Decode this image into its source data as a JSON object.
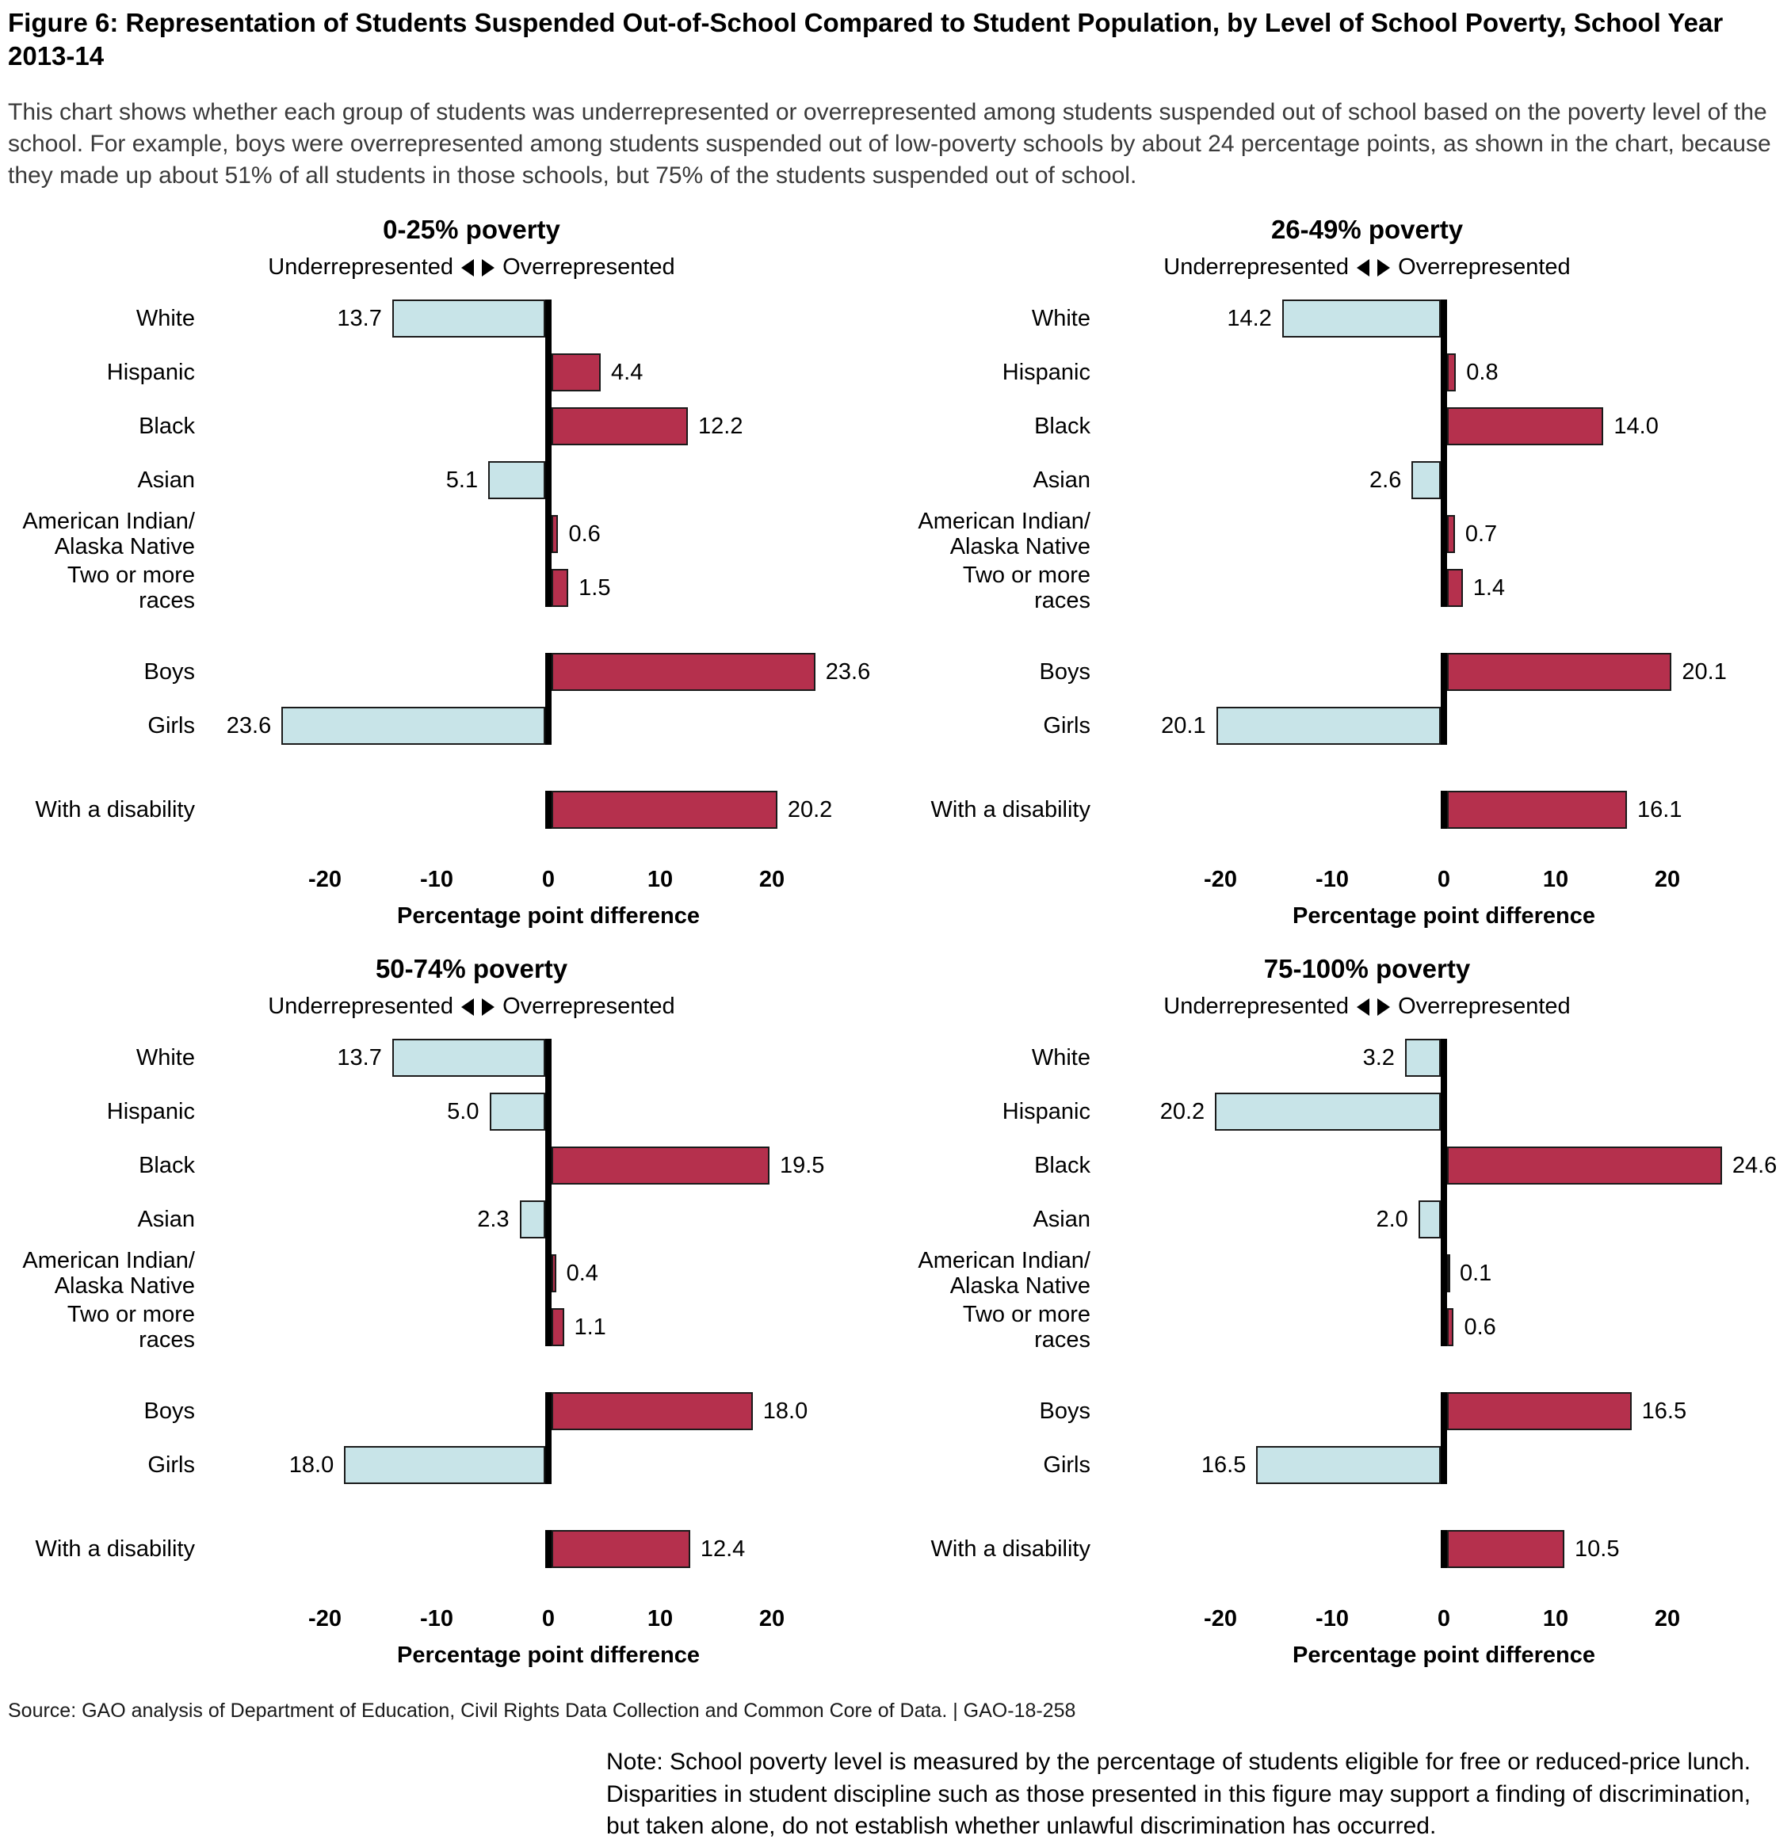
{
  "header": {
    "title": "Figure 6: Representation of Students Suspended Out-of-School Compared to Student Population, by Level of School Poverty, School Year 2013-14",
    "description": "This chart shows whether each group of students was underrepresented or overrepresented among students suspended out of school based on the poverty level of the school. For example, boys were overrepresented among students suspended out of low-poverty schools by about 24 percentage points, as shown in the chart, because they made up about 51% of all students in those schools, but 75% of the students suspended out of school."
  },
  "colors": {
    "underrepresented_bar": "#c8e4e8",
    "overrepresented_bar": "#b5304d",
    "bar_border": "#1a1a1a",
    "zero_axis": "#000000"
  },
  "chart_data": {
    "type": "bar",
    "orientation": "horizontal-diverging",
    "direction_left": "Underrepresented",
    "direction_right": "Overrepresented",
    "xlabel": "Percentage point difference",
    "xticks": [
      -20,
      -10,
      0,
      10,
      20
    ],
    "xlim": [
      -25,
      29
    ],
    "negative_meaning": "underrepresented (light blue, bars left of zero)",
    "positive_meaning": "overrepresented (dark red, bars right of zero)",
    "panels": [
      {
        "title": "0-25% poverty",
        "groups": [
          {
            "rows": [
              {
                "label": "White",
                "value": -13.7
              },
              {
                "label": "Hispanic",
                "value": 4.4
              },
              {
                "label": "Black",
                "value": 12.2
              },
              {
                "label": "Asian",
                "value": -5.1
              },
              {
                "label": "American Indian/\nAlaska Native",
                "value": 0.6
              },
              {
                "label": "Two or more races",
                "value": 1.5
              }
            ]
          },
          {
            "rows": [
              {
                "label": "Boys",
                "value": 23.6
              },
              {
                "label": "Girls",
                "value": -23.6
              }
            ]
          },
          {
            "rows": [
              {
                "label": "With a disability",
                "value": 20.2
              }
            ]
          }
        ]
      },
      {
        "title": "26-49% poverty",
        "groups": [
          {
            "rows": [
              {
                "label": "White",
                "value": -14.2
              },
              {
                "label": "Hispanic",
                "value": 0.8
              },
              {
                "label": "Black",
                "value": 14.0
              },
              {
                "label": "Asian",
                "value": -2.6
              },
              {
                "label": "American Indian/\nAlaska Native",
                "value": 0.7
              },
              {
                "label": "Two or more races",
                "value": 1.4
              }
            ]
          },
          {
            "rows": [
              {
                "label": "Boys",
                "value": 20.1
              },
              {
                "label": "Girls",
                "value": -20.1
              }
            ]
          },
          {
            "rows": [
              {
                "label": "With a disability",
                "value": 16.1
              }
            ]
          }
        ]
      },
      {
        "title": "50-74% poverty",
        "groups": [
          {
            "rows": [
              {
                "label": "White",
                "value": -13.7
              },
              {
                "label": "Hispanic",
                "value": -5.0
              },
              {
                "label": "Black",
                "value": 19.5
              },
              {
                "label": "Asian",
                "value": -2.3
              },
              {
                "label": "American Indian/\nAlaska Native",
                "value": 0.4
              },
              {
                "label": "Two or more races",
                "value": 1.1
              }
            ]
          },
          {
            "rows": [
              {
                "label": "Boys",
                "value": 18.0
              },
              {
                "label": "Girls",
                "value": -18.0
              }
            ]
          },
          {
            "rows": [
              {
                "label": "With a disability",
                "value": 12.4
              }
            ]
          }
        ]
      },
      {
        "title": "75-100% poverty",
        "groups": [
          {
            "rows": [
              {
                "label": "White",
                "value": -3.2
              },
              {
                "label": "Hispanic",
                "value": -20.2
              },
              {
                "label": "Black",
                "value": 24.6
              },
              {
                "label": "Asian",
                "value": -2.0
              },
              {
                "label": "American Indian/\nAlaska Native",
                "value": 0.1
              },
              {
                "label": "Two or more races",
                "value": 0.6
              }
            ]
          },
          {
            "rows": [
              {
                "label": "Boys",
                "value": 16.5
              },
              {
                "label": "Girls",
                "value": -16.5
              }
            ]
          },
          {
            "rows": [
              {
                "label": "With a disability",
                "value": 10.5
              }
            ]
          }
        ]
      }
    ]
  },
  "footer": {
    "source": "Source: GAO analysis of Department of Education, Civil Rights Data Collection and Common Core of Data.  |  GAO-18-258",
    "note": "Note: School poverty level is measured by the percentage of students eligible for free or reduced-price lunch. Disparities in student discipline such as those presented in this figure may support a finding of discrimination, but taken alone, do not establish whether unlawful discrimination has occurred."
  }
}
